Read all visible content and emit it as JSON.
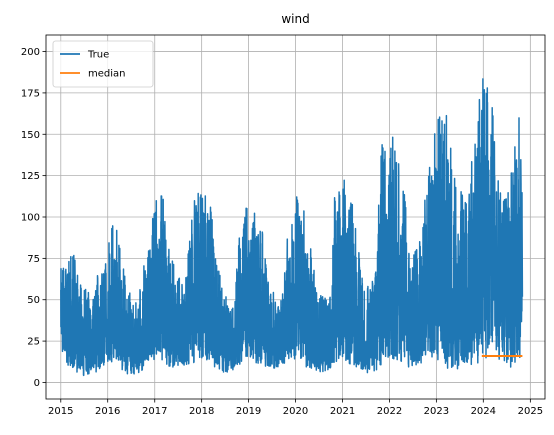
{
  "chart_data": {
    "type": "line",
    "title": "wind",
    "xlabel": "",
    "ylabel": "",
    "x_ticks": [
      "2015",
      "2016",
      "2017",
      "2018",
      "2019",
      "2020",
      "2021",
      "2022",
      "2023",
      "2024",
      "2025"
    ],
    "y_ticks": [
      0,
      25,
      50,
      75,
      100,
      125,
      150,
      175,
      200
    ],
    "xlim": [
      "2014-09-08",
      "2025-04-25"
    ],
    "ylim": [
      -10,
      210
    ],
    "grid": true,
    "legend_position": "top-left",
    "series": [
      {
        "name": "True",
        "color": "#1f77b4",
        "x_range": [
          "2015-01-01",
          "2024-10-31"
        ],
        "points": [
          [
            "2015-01-01",
            80
          ],
          [
            "2015-01-12",
            18
          ],
          [
            "2015-02-02",
            68
          ],
          [
            "2015-03-01",
            8
          ],
          [
            "2015-04-05",
            82
          ],
          [
            "2015-05-10",
            5
          ],
          [
            "2015-06-15",
            60
          ],
          [
            "2015-07-20",
            4
          ],
          [
            "2015-08-25",
            58
          ],
          [
            "2015-10-01",
            6
          ],
          [
            "2015-11-05",
            70
          ],
          [
            "2015-12-10",
            10
          ],
          [
            "2016-01-10",
            85
          ],
          [
            "2016-02-15",
            12
          ],
          [
            "2016-03-01",
            105
          ],
          [
            "2016-04-10",
            8
          ],
          [
            "2016-05-20",
            60
          ],
          [
            "2016-06-25",
            4
          ],
          [
            "2016-08-01",
            48
          ],
          [
            "2016-09-10",
            6
          ],
          [
            "2016-10-20",
            75
          ],
          [
            "2016-12-01",
            12
          ],
          [
            "2017-01-01",
            110
          ],
          [
            "2017-02-01",
            14
          ],
          [
            "2017-03-01",
            115
          ],
          [
            "2017-04-15",
            10
          ],
          [
            "2017-06-01",
            70
          ],
          [
            "2017-07-10",
            8
          ],
          [
            "2017-08-20",
            60
          ],
          [
            "2017-10-01",
            10
          ],
          [
            "2017-11-01",
            116
          ],
          [
            "2017-12-15",
            15
          ],
          [
            "2018-01-01",
            115
          ],
          [
            "2018-02-10",
            12
          ],
          [
            "2018-03-20",
            112
          ],
          [
            "2018-05-01",
            8
          ],
          [
            "2018-06-15",
            55
          ],
          [
            "2018-07-20",
            5
          ],
          [
            "2018-09-01",
            45
          ],
          [
            "2018-10-10",
            10
          ],
          [
            "2018-11-10",
            110
          ],
          [
            "2018-12-20",
            15
          ],
          [
            "2019-01-15",
            105
          ],
          [
            "2019-02-20",
            12
          ],
          [
            "2019-03-15",
            110
          ],
          [
            "2019-05-01",
            10
          ],
          [
            "2019-06-15",
            60
          ],
          [
            "2019-08-01",
            8
          ],
          [
            "2019-09-15",
            50
          ],
          [
            "2019-11-01",
            90
          ],
          [
            "2019-12-15",
            15
          ],
          [
            "2020-01-10",
            115
          ],
          [
            "2020-02-15",
            10
          ],
          [
            "2020-03-10",
            105
          ],
          [
            "2020-05-01",
            8
          ],
          [
            "2020-06-20",
            55
          ],
          [
            "2020-08-01",
            6
          ],
          [
            "2020-09-15",
            50
          ],
          [
            "2020-11-01",
            120
          ],
          [
            "2020-12-15",
            12
          ],
          [
            "2021-01-15",
            123
          ],
          [
            "2021-02-20",
            10
          ],
          [
            "2021-03-15",
            110
          ],
          [
            "2021-05-01",
            8
          ],
          [
            "2021-06-15",
            60
          ],
          [
            "2021-08-01",
            5
          ],
          [
            "2021-09-15",
            70
          ],
          [
            "2021-11-01",
            145
          ],
          [
            "2021-12-15",
            12
          ],
          [
            "2022-01-15",
            150
          ],
          [
            "2022-02-15",
            10
          ],
          [
            "2022-03-15",
            153
          ],
          [
            "2022-05-01",
            8
          ],
          [
            "2022-06-15",
            75
          ],
          [
            "2022-08-01",
            10
          ],
          [
            "2022-09-15",
            90
          ],
          [
            "2022-11-01",
            140
          ],
          [
            "2022-12-15",
            15
          ],
          [
            "2023-01-15",
            160
          ],
          [
            "2023-02-10",
            10
          ],
          [
            "2023-03-10",
            170
          ],
          [
            "2023-04-15",
            5
          ],
          [
            "2023-06-01",
            120
          ],
          [
            "2023-07-15",
            8
          ],
          [
            "2023-09-01",
            110
          ],
          [
            "2023-10-15",
            160
          ],
          [
            "2023-12-01",
            12
          ],
          [
            "2024-01-01",
            197
          ],
          [
            "2024-01-20",
            15
          ],
          [
            "2024-02-10",
            199
          ],
          [
            "2024-03-15",
            10
          ],
          [
            "2024-04-20",
            130
          ],
          [
            "2024-05-25",
            12
          ],
          [
            "2024-07-01",
            110
          ],
          [
            "2024-08-15",
            8
          ],
          [
            "2024-09-20",
            155
          ],
          [
            "2024-10-10",
            15
          ],
          [
            "2024-10-31",
            170
          ]
        ]
      },
      {
        "name": "median",
        "color": "#ff7f0e",
        "x": [
          "2023-12-20",
          "2024-10-31"
        ],
        "y": [
          16,
          16
        ]
      }
    ]
  }
}
